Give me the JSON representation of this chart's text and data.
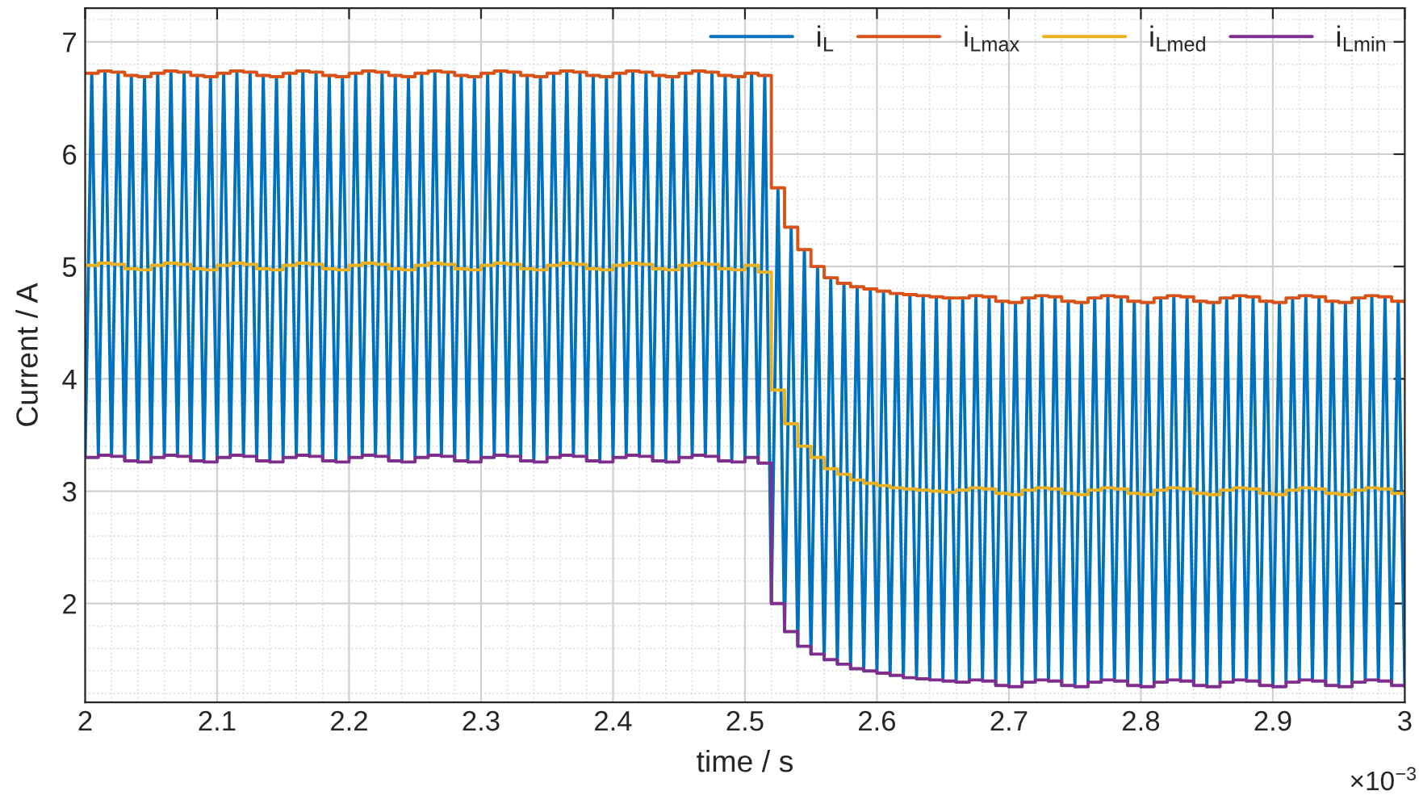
{
  "chart_data": {
    "type": "line",
    "xlabel": "time / s",
    "ylabel": "Current / A",
    "annotations": [
      "×10$^{−3}$"
    ],
    "xlim": [
      2,
      3
    ],
    "xticks": [
      2,
      2.1,
      2.2,
      2.3,
      2.4,
      2.5,
      2.6,
      2.7,
      2.8,
      2.9,
      3
    ],
    "ylim": [
      1.12,
      7.3
    ],
    "yticks": [
      2,
      3,
      4,
      5,
      6,
      7
    ],
    "grid": true,
    "legend": "top right",
    "series": [
      {
        "name": "i$_{L}$",
        "color": "#0072bd",
        "x": [
          2.0,
          2.005,
          2.01,
          2.015,
          2.02,
          2.025,
          2.03,
          2.035,
          2.04,
          2.045,
          2.05,
          2.055,
          2.06,
          2.065,
          2.07,
          2.075,
          2.08,
          2.085,
          2.09,
          2.095,
          2.1,
          2.105,
          2.11,
          2.115,
          2.12,
          2.125,
          2.13,
          2.135,
          2.14,
          2.145,
          2.15,
          2.155,
          2.16,
          2.165,
          2.17,
          2.175,
          2.18,
          2.185,
          2.19,
          2.195,
          2.2,
          2.205,
          2.21,
          2.215,
          2.22,
          2.225,
          2.23,
          2.235,
          2.24,
          2.245,
          2.25,
          2.255,
          2.26,
          2.265,
          2.27,
          2.275,
          2.28,
          2.285,
          2.29,
          2.295,
          2.3,
          2.305,
          2.31,
          2.315,
          2.32,
          2.325,
          2.33,
          2.335,
          2.34,
          2.345,
          2.35,
          2.355,
          2.36,
          2.365,
          2.37,
          2.375,
          2.38,
          2.385,
          2.39,
          2.395,
          2.4,
          2.405,
          2.41,
          2.415,
          2.42,
          2.425,
          2.43,
          2.435,
          2.44,
          2.445,
          2.45,
          2.455,
          2.46,
          2.465,
          2.47,
          2.475,
          2.48,
          2.485,
          2.49,
          2.495,
          2.5,
          2.505,
          2.51,
          2.515,
          2.52,
          2.525,
          2.53,
          2.535,
          2.54,
          2.545,
          2.55,
          2.555,
          2.56,
          2.565,
          2.57,
          2.575,
          2.58,
          2.585,
          2.59,
          2.595,
          2.6,
          2.605,
          2.61,
          2.615,
          2.62,
          2.625,
          2.63,
          2.635,
          2.64,
          2.645,
          2.65,
          2.655,
          2.66,
          2.665,
          2.67,
          2.675,
          2.68,
          2.685,
          2.69,
          2.695,
          2.7,
          2.705,
          2.71,
          2.715,
          2.72,
          2.725,
          2.73,
          2.735,
          2.74,
          2.745,
          2.75,
          2.755,
          2.76,
          2.765,
          2.77,
          2.775,
          2.78,
          2.785,
          2.79,
          2.795,
          2.8,
          2.805,
          2.81,
          2.815,
          2.82,
          2.825,
          2.83,
          2.835,
          2.84,
          2.845,
          2.85,
          2.855,
          2.86,
          2.865,
          2.87,
          2.875,
          2.88,
          2.885,
          2.89,
          2.895,
          2.9,
          2.905,
          2.91,
          2.915,
          2.92,
          2.925,
          2.93,
          2.935,
          2.94,
          2.945,
          2.95,
          2.955,
          2.96,
          2.965,
          2.97,
          2.975,
          2.98,
          2.985,
          2.99,
          2.995,
          3.0
        ],
        "values": [
          3.3,
          6.72,
          3.32,
          6.74,
          3.31,
          6.73,
          3.27,
          6.7,
          3.26,
          6.69,
          3.3,
          6.72,
          3.32,
          6.74,
          3.31,
          6.73,
          3.27,
          6.7,
          3.26,
          6.69,
          3.3,
          6.72,
          3.32,
          6.74,
          3.31,
          6.73,
          3.27,
          6.7,
          3.26,
          6.69,
          3.3,
          6.72,
          3.32,
          6.74,
          3.31,
          6.73,
          3.27,
          6.7,
          3.26,
          6.69,
          3.3,
          6.72,
          3.32,
          6.74,
          3.31,
          6.73,
          3.27,
          6.7,
          3.26,
          6.69,
          3.3,
          6.72,
          3.32,
          6.74,
          3.31,
          6.73,
          3.27,
          6.7,
          3.26,
          6.69,
          3.3,
          6.72,
          3.32,
          6.74,
          3.31,
          6.73,
          3.27,
          6.7,
          3.26,
          6.69,
          3.3,
          6.72,
          3.32,
          6.74,
          3.31,
          6.73,
          3.27,
          6.7,
          3.26,
          6.69,
          3.3,
          6.72,
          3.32,
          6.74,
          3.31,
          6.73,
          3.27,
          6.7,
          3.26,
          6.69,
          3.3,
          6.72,
          3.32,
          6.74,
          3.31,
          6.73,
          3.27,
          6.7,
          3.26,
          6.69,
          3.3,
          6.72,
          3.25,
          6.7,
          2.0,
          5.7,
          1.75,
          5.35,
          1.62,
          5.15,
          1.55,
          5.0,
          1.5,
          4.9,
          1.46,
          4.85,
          1.42,
          4.82,
          1.4,
          4.8,
          1.38,
          4.78,
          1.36,
          4.76,
          1.34,
          4.75,
          1.33,
          4.74,
          1.32,
          4.73,
          1.31,
          4.72,
          1.3,
          4.72,
          1.32,
          4.74,
          1.31,
          4.73,
          1.27,
          4.69,
          1.26,
          4.68,
          1.3,
          4.72,
          1.32,
          4.74,
          1.31,
          4.73,
          1.27,
          4.69,
          1.26,
          4.68,
          1.3,
          4.72,
          1.32,
          4.74,
          1.31,
          4.73,
          1.27,
          4.69,
          1.26,
          4.68,
          1.3,
          4.72,
          1.32,
          4.74,
          1.31,
          4.73,
          1.27,
          4.69,
          1.26,
          4.68,
          1.3,
          4.72,
          1.32,
          4.74,
          1.31,
          4.73,
          1.27,
          4.69,
          1.26,
          4.68,
          1.3,
          4.72,
          1.32,
          4.74,
          1.31,
          4.73,
          1.27,
          4.69,
          1.26,
          4.68,
          1.3,
          4.72,
          1.32,
          4.74,
          1.31,
          4.73,
          1.27,
          4.69,
          1.26
        ]
      },
      {
        "name": "i$_{Lmax}$",
        "color": "#d95319",
        "type": "step",
        "x": [
          2.0,
          2.01,
          2.02,
          2.03,
          2.04,
          2.05,
          2.06,
          2.07,
          2.08,
          2.09,
          2.1,
          2.11,
          2.12,
          2.13,
          2.14,
          2.15,
          2.16,
          2.17,
          2.18,
          2.19,
          2.2,
          2.21,
          2.22,
          2.23,
          2.24,
          2.25,
          2.26,
          2.27,
          2.28,
          2.29,
          2.3,
          2.31,
          2.32,
          2.33,
          2.34,
          2.35,
          2.36,
          2.37,
          2.38,
          2.39,
          2.4,
          2.41,
          2.42,
          2.43,
          2.44,
          2.45,
          2.46,
          2.47,
          2.48,
          2.49,
          2.5,
          2.51,
          2.52,
          2.53,
          2.54,
          2.55,
          2.56,
          2.57,
          2.58,
          2.59,
          2.6,
          2.61,
          2.62,
          2.63,
          2.64,
          2.65,
          2.66,
          2.67,
          2.68,
          2.69,
          2.7,
          2.71,
          2.72,
          2.73,
          2.74,
          2.75,
          2.76,
          2.77,
          2.78,
          2.79,
          2.8,
          2.81,
          2.82,
          2.83,
          2.84,
          2.85,
          2.86,
          2.87,
          2.88,
          2.89,
          2.9,
          2.91,
          2.92,
          2.93,
          2.94,
          2.95,
          2.96,
          2.97,
          2.98,
          2.99,
          3.0
        ],
        "values": [
          6.72,
          6.74,
          6.73,
          6.7,
          6.69,
          6.72,
          6.74,
          6.73,
          6.7,
          6.69,
          6.72,
          6.74,
          6.73,
          6.7,
          6.69,
          6.72,
          6.74,
          6.73,
          6.7,
          6.69,
          6.72,
          6.74,
          6.73,
          6.7,
          6.69,
          6.72,
          6.74,
          6.73,
          6.7,
          6.69,
          6.72,
          6.74,
          6.73,
          6.7,
          6.69,
          6.72,
          6.74,
          6.73,
          6.7,
          6.69,
          6.72,
          6.74,
          6.73,
          6.7,
          6.69,
          6.72,
          6.74,
          6.73,
          6.7,
          6.69,
          6.72,
          6.7,
          5.7,
          5.35,
          5.15,
          5.0,
          4.9,
          4.85,
          4.82,
          4.8,
          4.78,
          4.76,
          4.75,
          4.74,
          4.73,
          4.72,
          4.72,
          4.74,
          4.73,
          4.69,
          4.68,
          4.72,
          4.74,
          4.73,
          4.69,
          4.68,
          4.72,
          4.74,
          4.73,
          4.69,
          4.68,
          4.72,
          4.74,
          4.73,
          4.69,
          4.68,
          4.72,
          4.74,
          4.73,
          4.69,
          4.68,
          4.72,
          4.74,
          4.73,
          4.69,
          4.68,
          4.72,
          4.74,
          4.73,
          4.69,
          4.68
        ]
      },
      {
        "name": "i$_{Lmed}$",
        "color": "#edb120",
        "type": "step",
        "x": [
          2.0,
          2.01,
          2.02,
          2.03,
          2.04,
          2.05,
          2.06,
          2.07,
          2.08,
          2.09,
          2.1,
          2.11,
          2.12,
          2.13,
          2.14,
          2.15,
          2.16,
          2.17,
          2.18,
          2.19,
          2.2,
          2.21,
          2.22,
          2.23,
          2.24,
          2.25,
          2.26,
          2.27,
          2.28,
          2.29,
          2.3,
          2.31,
          2.32,
          2.33,
          2.34,
          2.35,
          2.36,
          2.37,
          2.38,
          2.39,
          2.4,
          2.41,
          2.42,
          2.43,
          2.44,
          2.45,
          2.46,
          2.47,
          2.48,
          2.49,
          2.5,
          2.51,
          2.52,
          2.53,
          2.54,
          2.55,
          2.56,
          2.57,
          2.58,
          2.59,
          2.6,
          2.61,
          2.62,
          2.63,
          2.64,
          2.65,
          2.66,
          2.67,
          2.68,
          2.69,
          2.7,
          2.71,
          2.72,
          2.73,
          2.74,
          2.75,
          2.76,
          2.77,
          2.78,
          2.79,
          2.8,
          2.81,
          2.82,
          2.83,
          2.84,
          2.85,
          2.86,
          2.87,
          2.88,
          2.89,
          2.9,
          2.91,
          2.92,
          2.93,
          2.94,
          2.95,
          2.96,
          2.97,
          2.98,
          2.99,
          3.0
        ],
        "values": [
          5.01,
          5.03,
          5.02,
          4.98,
          4.97,
          5.01,
          5.03,
          5.02,
          4.98,
          4.97,
          5.01,
          5.03,
          5.02,
          4.98,
          4.97,
          5.01,
          5.03,
          5.02,
          4.98,
          4.97,
          5.01,
          5.03,
          5.02,
          4.98,
          4.97,
          5.01,
          5.03,
          5.02,
          4.98,
          4.97,
          5.01,
          5.03,
          5.02,
          4.98,
          4.97,
          5.01,
          5.03,
          5.02,
          4.98,
          4.97,
          5.01,
          5.03,
          5.02,
          4.98,
          4.97,
          5.01,
          5.03,
          5.02,
          4.98,
          4.97,
          5.01,
          4.95,
          3.9,
          3.6,
          3.4,
          3.3,
          3.2,
          3.15,
          3.1,
          3.07,
          3.05,
          3.03,
          3.02,
          3.01,
          3.0,
          2.99,
          3.01,
          3.03,
          3.02,
          2.98,
          2.97,
          3.01,
          3.03,
          3.02,
          2.98,
          2.97,
          3.01,
          3.03,
          3.02,
          2.98,
          2.97,
          3.01,
          3.03,
          3.02,
          2.98,
          2.97,
          3.01,
          3.03,
          3.02,
          2.98,
          2.97,
          3.01,
          3.03,
          3.02,
          2.98,
          2.97,
          3.01,
          3.03,
          3.02,
          2.98,
          2.97
        ]
      },
      {
        "name": "i$_{Lmin}$",
        "color": "#7e2f8e",
        "type": "step",
        "x": [
          2.0,
          2.01,
          2.02,
          2.03,
          2.04,
          2.05,
          2.06,
          2.07,
          2.08,
          2.09,
          2.1,
          2.11,
          2.12,
          2.13,
          2.14,
          2.15,
          2.16,
          2.17,
          2.18,
          2.19,
          2.2,
          2.21,
          2.22,
          2.23,
          2.24,
          2.25,
          2.26,
          2.27,
          2.28,
          2.29,
          2.3,
          2.31,
          2.32,
          2.33,
          2.34,
          2.35,
          2.36,
          2.37,
          2.38,
          2.39,
          2.4,
          2.41,
          2.42,
          2.43,
          2.44,
          2.45,
          2.46,
          2.47,
          2.48,
          2.49,
          2.5,
          2.51,
          2.52,
          2.53,
          2.54,
          2.55,
          2.56,
          2.57,
          2.58,
          2.59,
          2.6,
          2.61,
          2.62,
          2.63,
          2.64,
          2.65,
          2.66,
          2.67,
          2.68,
          2.69,
          2.7,
          2.71,
          2.72,
          2.73,
          2.74,
          2.75,
          2.76,
          2.77,
          2.78,
          2.79,
          2.8,
          2.81,
          2.82,
          2.83,
          2.84,
          2.85,
          2.86,
          2.87,
          2.88,
          2.89,
          2.9,
          2.91,
          2.92,
          2.93,
          2.94,
          2.95,
          2.96,
          2.97,
          2.98,
          2.99,
          3.0
        ],
        "values": [
          3.3,
          3.32,
          3.31,
          3.27,
          3.26,
          3.3,
          3.32,
          3.31,
          3.27,
          3.26,
          3.3,
          3.32,
          3.31,
          3.27,
          3.26,
          3.3,
          3.32,
          3.31,
          3.27,
          3.26,
          3.3,
          3.32,
          3.31,
          3.27,
          3.26,
          3.3,
          3.32,
          3.31,
          3.27,
          3.26,
          3.3,
          3.32,
          3.31,
          3.27,
          3.26,
          3.3,
          3.32,
          3.31,
          3.27,
          3.26,
          3.3,
          3.32,
          3.31,
          3.27,
          3.26,
          3.3,
          3.32,
          3.31,
          3.27,
          3.26,
          3.3,
          3.25,
          2.0,
          1.75,
          1.62,
          1.55,
          1.5,
          1.46,
          1.42,
          1.4,
          1.38,
          1.36,
          1.34,
          1.33,
          1.32,
          1.31,
          1.3,
          1.32,
          1.31,
          1.27,
          1.26,
          1.3,
          1.32,
          1.31,
          1.27,
          1.26,
          1.3,
          1.32,
          1.31,
          1.27,
          1.26,
          1.3,
          1.32,
          1.31,
          1.27,
          1.26,
          1.3,
          1.32,
          1.31,
          1.27,
          1.26,
          1.3,
          1.32,
          1.31,
          1.27,
          1.26,
          1.3,
          1.32,
          1.31,
          1.27,
          1.26
        ]
      }
    ]
  }
}
